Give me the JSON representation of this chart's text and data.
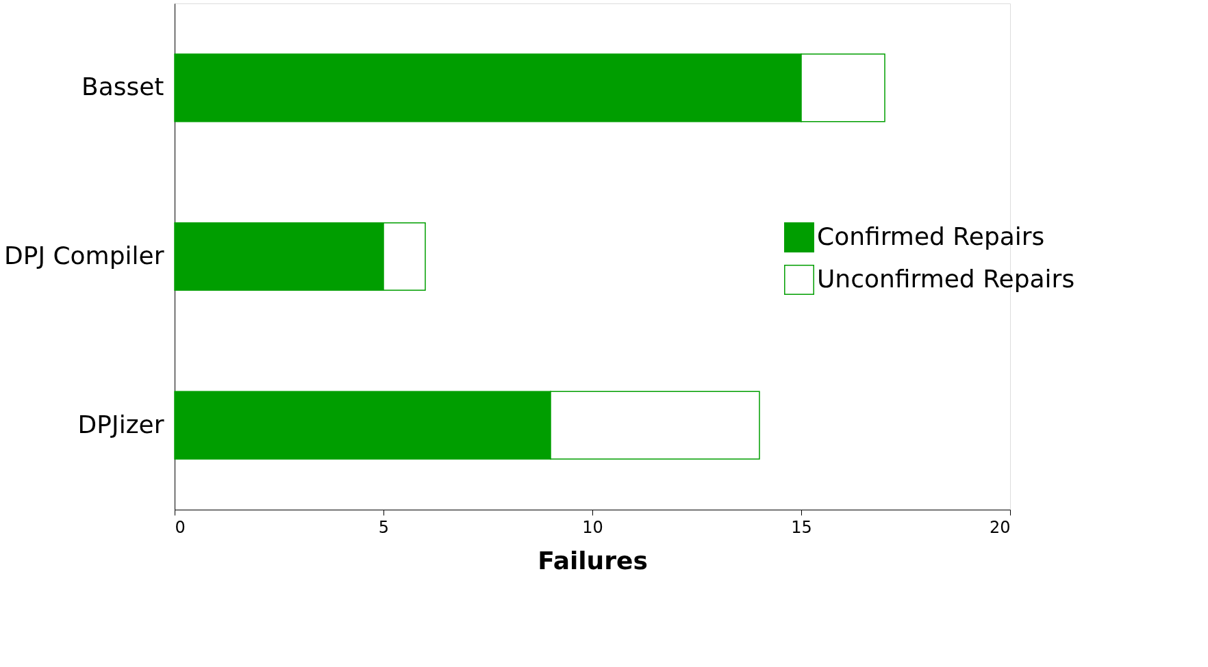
{
  "chart_data": {
    "type": "bar",
    "orientation": "horizontal",
    "stacked": true,
    "xlabel": "Failures",
    "categories": [
      "Basset",
      "DPJ Compiler",
      "DPJizer"
    ],
    "series": [
      {
        "name": "Confirmed Repairs",
        "color": "#009e00",
        "values": [
          15,
          5,
          9
        ]
      },
      {
        "name": "Unconfirmed Repairs",
        "color": "#ffffff",
        "values": [
          2,
          1,
          5
        ]
      }
    ],
    "xlim": [
      0,
      20
    ],
    "xticks": [
      0,
      5,
      10,
      15,
      20
    ],
    "grid": false,
    "legend": "right"
  }
}
